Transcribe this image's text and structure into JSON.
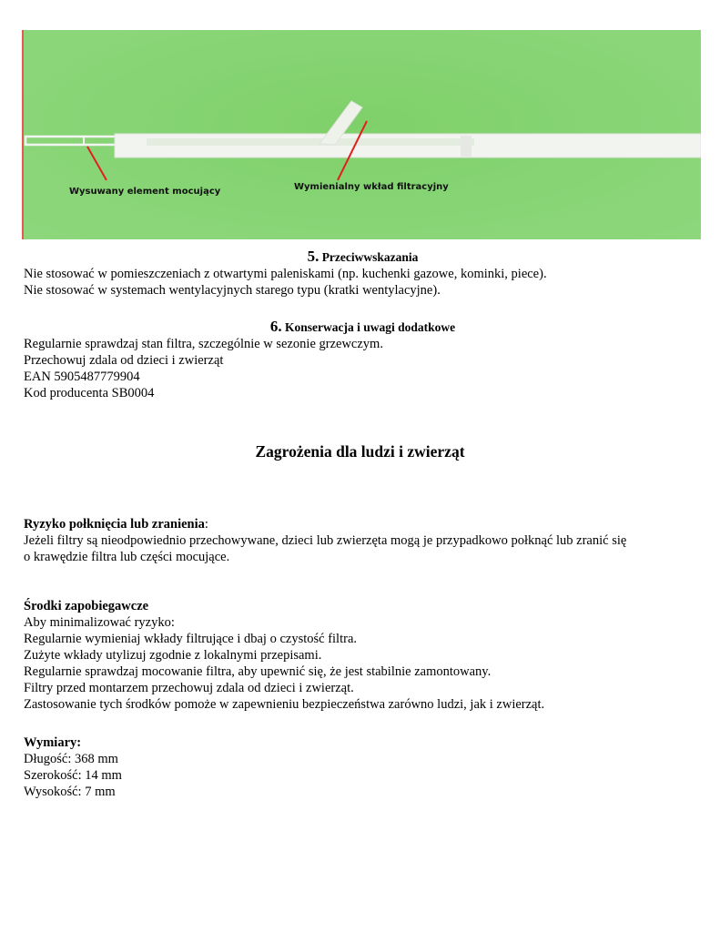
{
  "photo": {
    "labels": [
      "Wysuwany element mocujący",
      "Wymienialny wkład filtracyjny"
    ]
  },
  "s5": {
    "num": "5.",
    "title": "Przeciwwskazania",
    "lines": [
      "Nie stosować w pomieszczeniach z otwartymi paleniskami (np. kuchenki gazowe, kominki, piece).",
      "Nie stosować w systemach wentylacyjnych starego typu (kratki wentylacyjne)."
    ]
  },
  "s6": {
    "num": "6.",
    "title": "Konserwacja i uwagi dodatkowe",
    "lines": [
      "Regularnie sprawdzaj stan filtra, szczególnie w sezonie grzewczym.",
      "Przechowuj zdala od dzieci i zwierząt",
      "EAN 5905487779904",
      "Kod producenta SB0004"
    ]
  },
  "hazards": {
    "title": "Zagrożenia dla ludzi i zwierząt"
  },
  "risk": {
    "title": "Ryzyko połknięcia lub zranienia",
    "colon": ":",
    "lines": [
      "Jeżeli filtry są nieodpowiednio przechowywane, dzieci lub zwierzęta mogą je przypadkowo połknąć lub zranić się",
      "o krawędzie filtra lub części mocujące."
    ]
  },
  "prevention": {
    "title": "Środki zapobiegawcze",
    "lines": [
      "Aby minimalizować ryzyko:",
      "Regularnie wymieniaj wkłady filtrujące i dbaj o czystość filtra.",
      "Zużyte wkłady utylizuj zgodnie z lokalnymi przepisami.",
      "Regularnie sprawdzaj mocowanie filtra, aby upewnić się, że jest stabilnie zamontowany.",
      "Filtry przed montarzem przechowuj zdala od dzieci i zwierząt.",
      "Zastosowanie tych środków pomoże w zapewnieniu bezpieczeństwa zarówno ludzi, jak i zwierząt."
    ]
  },
  "dims": {
    "title": "Wymiary:",
    "lines": [
      "Długość: 368 mm",
      "Szerokość: 14 mm",
      "Wysokość: 7 mm"
    ]
  }
}
